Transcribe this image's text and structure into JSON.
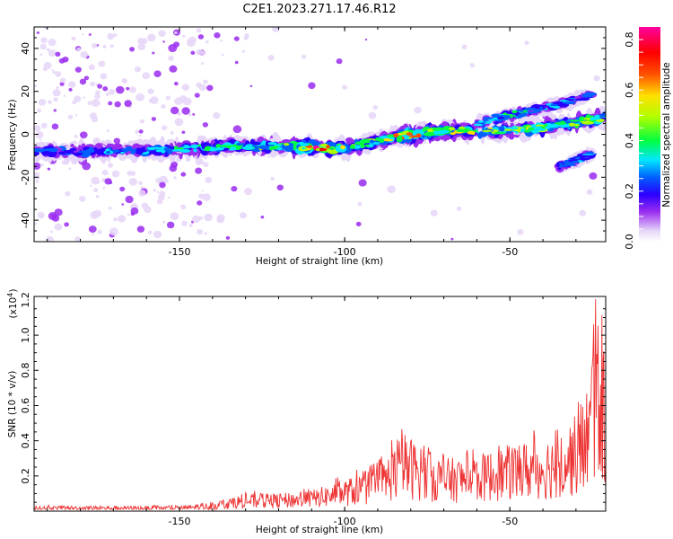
{
  "figure": {
    "title": "C2E1.2023.271.17.46.R12"
  },
  "chart_data": [
    {
      "type": "heatmap",
      "xlabel": "Height of straight line (km)",
      "ylabel": "Frequency (Hz)",
      "xlim": [
        -194,
        -21
      ],
      "ylim": [
        -50,
        50
      ],
      "xticks": [
        -150,
        -100,
        -50
      ],
      "yticks": [
        -40,
        -20,
        0,
        20,
        40
      ],
      "colorbar": {
        "label": "Normalized spectral amplitude",
        "range": [
          0,
          0.85
        ],
        "ticks": [
          0.0,
          0.2,
          0.4,
          0.6,
          0.8
        ],
        "colors": [
          "#ffffff",
          "#e6d6f8",
          "#9a2cf0",
          "#2a00ff",
          "#0060ff",
          "#00e6ff",
          "#00ff40",
          "#b0ff00",
          "#ffe000",
          "#ff5000",
          "#ff0000",
          "#ff00a0"
        ]
      },
      "main_band": {
        "x": [
          -194,
          -180,
          -165,
          -150,
          -135,
          -120,
          -110,
          -100,
          -90,
          -80,
          -70,
          -60,
          -50,
          -40,
          -30,
          -21
        ],
        "center_hz": [
          -8,
          -8,
          -7.5,
          -7,
          -5.5,
          -5.5,
          -6,
          -6.5,
          -3,
          0,
          1.5,
          1.5,
          2,
          3,
          5.5,
          8
        ],
        "peak_amplitude": [
          0.3,
          0.35,
          0.35,
          0.4,
          0.45,
          0.5,
          0.8,
          0.6,
          0.55,
          0.7,
          0.6,
          0.6,
          0.5,
          0.65,
          0.55,
          0.5
        ]
      },
      "upper_band": {
        "x": [
          -60,
          -50,
          -40,
          -30,
          -25
        ],
        "center_hz": [
          5,
          9,
          12,
          16,
          19
        ],
        "peak_amplitude": [
          0.4,
          0.45,
          0.4,
          0.35,
          0.3
        ]
      },
      "lower_band": {
        "x": [
          -35,
          -30,
          -25
        ],
        "center_hz": [
          -15,
          -12,
          -9
        ],
        "peak_amplitude": [
          0.3,
          0.4,
          0.35
        ]
      }
    },
    {
      "type": "line",
      "xlabel": "Height of straight line (km)",
      "ylabel": "SNR (10 * v/v)",
      "y_scale_label": "(x10",
      "y_scale_exp": "4",
      "y_scale_close": ")",
      "xlim": [
        -194,
        -21
      ],
      "ylim": [
        0,
        1.22
      ],
      "xticks": [
        -150,
        -100,
        -50
      ],
      "yticks": [
        0.2,
        0.4,
        0.6,
        0.8,
        1.0,
        1.2
      ],
      "series": [
        {
          "color": "#ee3333",
          "envelope_x": [
            -194,
            -170,
            -150,
            -140,
            -130,
            -120,
            -110,
            -100,
            -90,
            -82,
            -75,
            -70,
            -60,
            -50,
            -40,
            -35,
            -30,
            -26,
            -24,
            -22,
            -21
          ],
          "envelope_y": [
            0.03,
            0.03,
            0.03,
            0.05,
            0.1,
            0.1,
            0.12,
            0.18,
            0.25,
            0.45,
            0.35,
            0.3,
            0.32,
            0.38,
            0.42,
            0.45,
            0.55,
            0.75,
            1.2,
            0.95,
            0.8
          ]
        }
      ]
    }
  ]
}
